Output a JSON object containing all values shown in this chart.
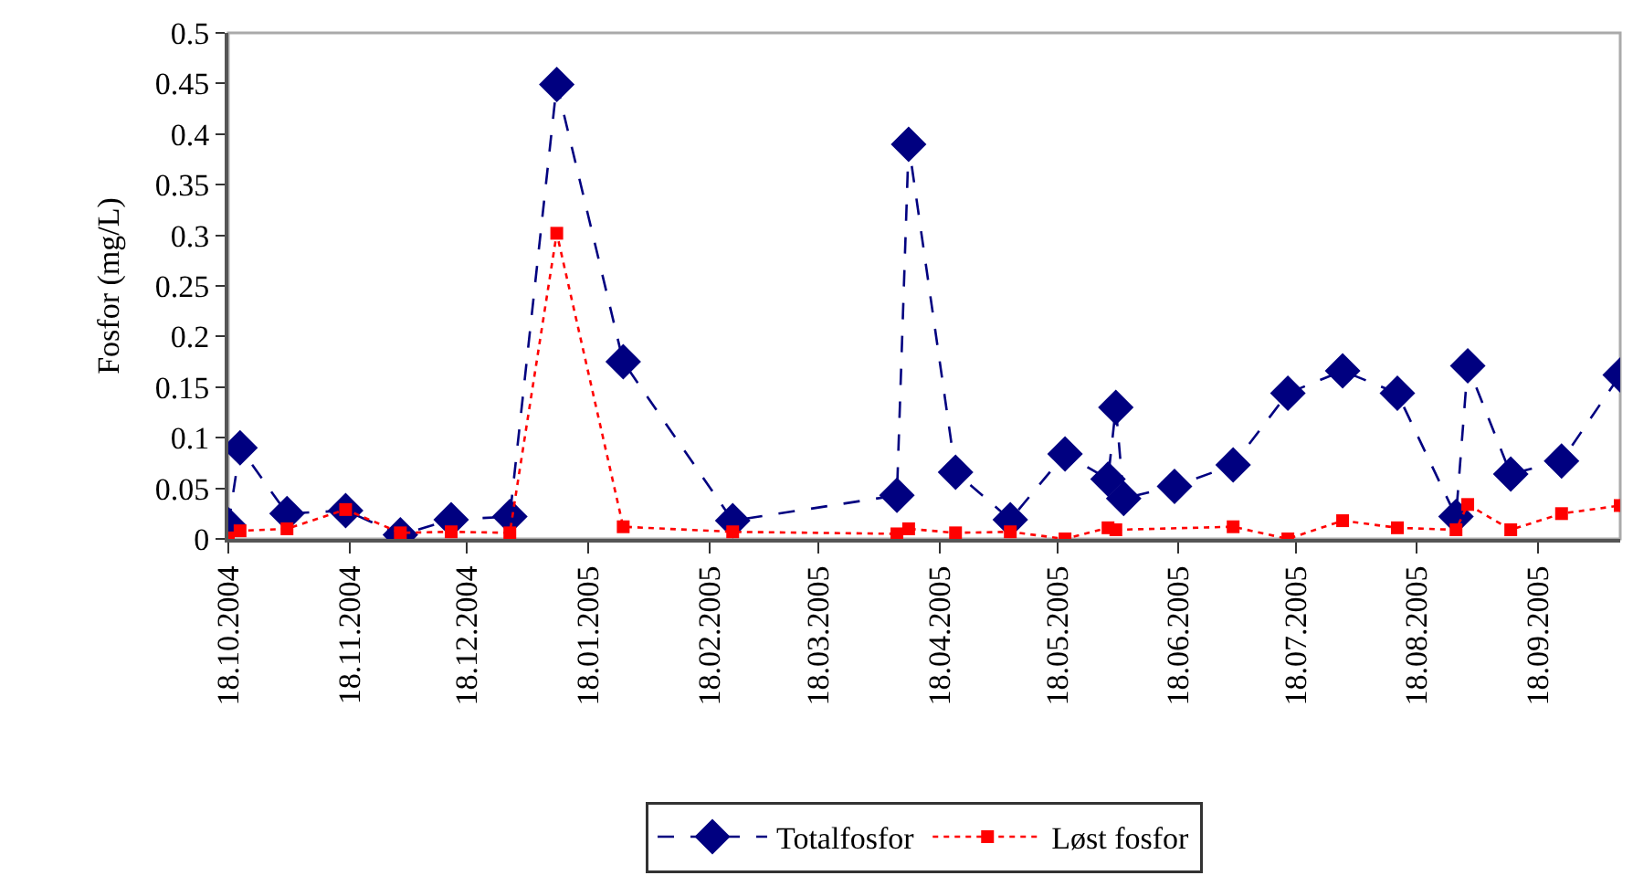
{
  "chart_data": {
    "type": "line",
    "ylabel": "Fosfor (mg/L)",
    "x": [
      "2004-10-18",
      "2004-10-21",
      "2004-11-02",
      "2004-11-17",
      "2004-12-01",
      "2004-12-14",
      "2004-12-29",
      "2005-01-10",
      "2005-01-27",
      "2005-02-24",
      "2005-04-07",
      "2005-04-10",
      "2005-04-22",
      "2005-05-06",
      "2005-05-20",
      "2005-05-31",
      "2005-06-02",
      "2005-06-04",
      "2005-06-17",
      "2005-07-02",
      "2005-07-16",
      "2005-07-30",
      "2005-08-13",
      "2005-08-28",
      "2005-08-31",
      "2005-09-11",
      "2005-09-24",
      "2005-10-09"
    ],
    "series": [
      {
        "name": "Totalfosfor",
        "color": "#000080",
        "marker": "diamond",
        "line_style": "dashed",
        "values": [
          0.014,
          0.09,
          0.025,
          0.028,
          0.004,
          0.019,
          0.022,
          0.449,
          0.175,
          0.018,
          0.043,
          0.39,
          0.066,
          0.019,
          0.084,
          0.059,
          0.13,
          0.04,
          0.052,
          0.073,
          0.144,
          0.166,
          0.144,
          0.022,
          0.171,
          0.064,
          0.077,
          0.162
        ]
      },
      {
        "name": "Løst fosfor",
        "color": "#ff0000",
        "marker": "square",
        "line_style": "dotted",
        "values": [
          0.001,
          0.008,
          0.01,
          0.029,
          0.006,
          0.007,
          0.006,
          0.302,
          0.012,
          0.007,
          0.005,
          0.01,
          0.006,
          0.007,
          0.0,
          0.011,
          0.009,
          null,
          null,
          0.012,
          0.0,
          0.018,
          0.011,
          0.009,
          0.034,
          0.009,
          0.025,
          0.033
        ]
      }
    ],
    "xlim": [
      "2004-10-18",
      "2005-10-09"
    ],
    "xticks": [
      {
        "value": "2004-10-18",
        "label": "18.10.2004"
      },
      {
        "value": "2004-11-18",
        "label": "18.11.2004"
      },
      {
        "value": "2004-12-18",
        "label": "18.12.2004"
      },
      {
        "value": "2005-01-18",
        "label": "18.01.2005"
      },
      {
        "value": "2005-02-18",
        "label": "18.02.2005"
      },
      {
        "value": "2005-03-18",
        "label": "18.03.2005"
      },
      {
        "value": "2005-04-18",
        "label": "18.04.2005"
      },
      {
        "value": "2005-05-18",
        "label": "18.05.2005"
      },
      {
        "value": "2005-06-18",
        "label": "18.06.2005"
      },
      {
        "value": "2005-07-18",
        "label": "18.07.2005"
      },
      {
        "value": "2005-08-18",
        "label": "18.08.2005"
      },
      {
        "value": "2005-09-18",
        "label": "18.09.2005"
      }
    ],
    "ylim": [
      0,
      0.5
    ],
    "yticks": [
      0,
      0.05,
      0.1,
      0.15,
      0.2,
      0.25,
      0.3,
      0.35,
      0.4,
      0.45,
      0.5
    ],
    "grid": false,
    "legend": "bottom"
  }
}
